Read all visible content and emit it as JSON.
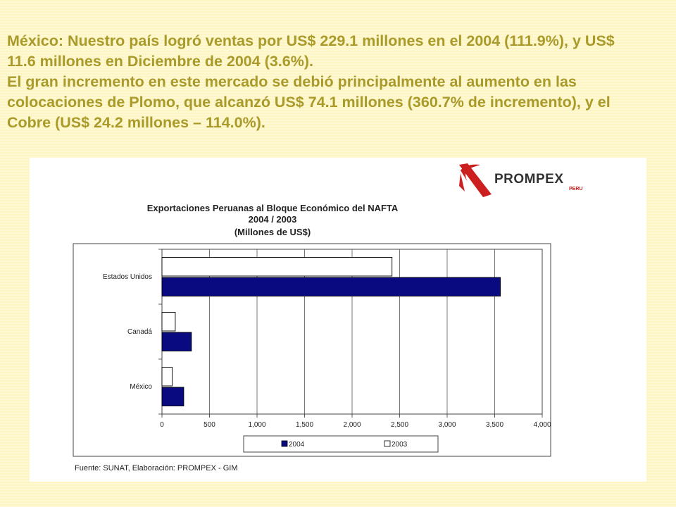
{
  "slide": {
    "paragraph1": "México: Nuestro país logró ventas por US$ 229.1 millones en el 2004 (111.9%), y US$ 11.6 millones en Diciembre de 2004 (3.6%).",
    "paragraph2": "El gran incremento en este mercado se debió principalmente al aumento en las colocaciones de Plomo, que alcanzó US$ 74.1 millones (360.7% de incremento), y el Cobre (US$ 24.2 millones – 114.0%)."
  },
  "logo": {
    "name": "PROMPEX",
    "sub": "PERU",
    "accent_color": "#cc1f1f"
  },
  "chart_data": {
    "type": "bar",
    "orientation": "horizontal",
    "title": "Exportaciones Peruanas al Bloque Económico del NAFTA",
    "subtitle": "2004 / 2003",
    "unit_label": "(Millones de US$)",
    "categories": [
      "Estados Unidos",
      "Canadá",
      "México"
    ],
    "series": [
      {
        "name": "2004",
        "values": [
          3560,
          310,
          229
        ],
        "color": "#0a0a80"
      },
      {
        "name": "2003",
        "values": [
          2420,
          140,
          108
        ],
        "color": "#ffffff"
      }
    ],
    "xlim": [
      0,
      4000
    ],
    "xticks": [
      "0",
      "500",
      "1,000",
      "1,500",
      "2,000",
      "2,500",
      "3,000",
      "3,500",
      "4,000"
    ],
    "grid": true,
    "legend_position": "bottom",
    "source": "Fuente: SUNAT, Elaboración: PROMPEX - GIM"
  }
}
